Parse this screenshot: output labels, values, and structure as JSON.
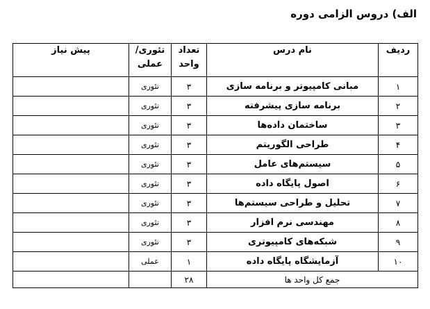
{
  "title": "الف) دروس الزامی دوره",
  "table": {
    "headers": {
      "no": "ردیف",
      "name": "نام درس",
      "units": "تعداد\nواحد",
      "type": "تئوری/\nعملی",
      "prereq": "پیش نیاز"
    },
    "rows": [
      {
        "no": "۱",
        "name": "مبانی کامپیوتر و برنامه سازی",
        "units": "۳",
        "type": "تئوری",
        "prereq": ""
      },
      {
        "no": "۲",
        "name": "برنامه سازی پیشرفته",
        "units": "۳",
        "type": "تئوری",
        "prereq": ""
      },
      {
        "no": "۳",
        "name": "ساختمان داده‌ها",
        "units": "۳",
        "type": "تئوری",
        "prereq": ""
      },
      {
        "no": "۴",
        "name": "طراحی الگوریتم",
        "units": "۳",
        "type": "تئوری",
        "prereq": ""
      },
      {
        "no": "۵",
        "name": "سیستم‌های عامل",
        "units": "۳",
        "type": "تئوری",
        "prereq": ""
      },
      {
        "no": "۶",
        "name": "اصول پایگاه داده",
        "units": "۳",
        "type": "تئوری",
        "prereq": ""
      },
      {
        "no": "۷",
        "name": "تحلیل و طراحی سیستم‌ها",
        "units": "۳",
        "type": "تئوری",
        "prereq": ""
      },
      {
        "no": "۸",
        "name": "مهندسی نرم افزار",
        "units": "۳",
        "type": "تئوری",
        "prereq": ""
      },
      {
        "no": "۹",
        "name": "شبکه‌های کامپیوتری",
        "units": "۳",
        "type": "تئوری",
        "prereq": ""
      },
      {
        "no": "۱۰",
        "name": "آزمایشگاه پایگاه داده",
        "units": "۱",
        "type": "عملی",
        "prereq": ""
      }
    ],
    "total": {
      "label": "جمع کل واحد ها",
      "units": "۲۸",
      "type": "",
      "prereq": ""
    }
  }
}
